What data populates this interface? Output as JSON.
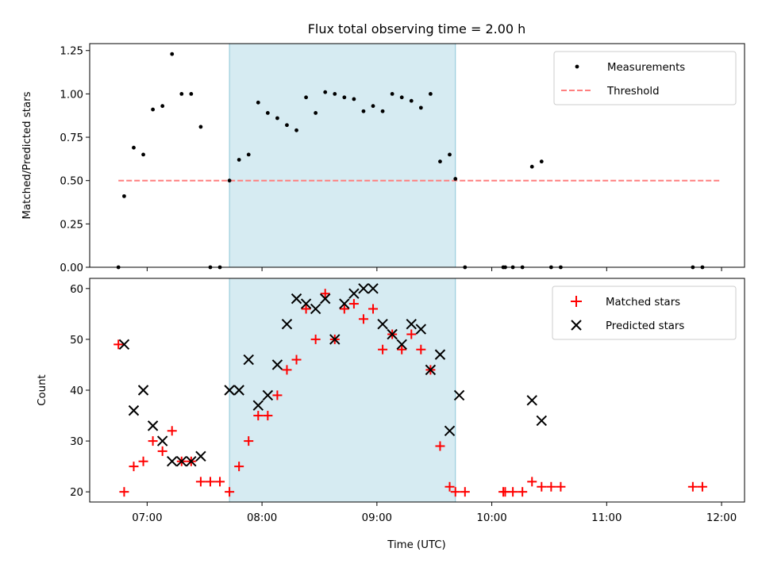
{
  "colors": {
    "measurement": "#000000",
    "threshold": "#ff7f7f",
    "matched": "#ff0000",
    "predicted": "#000000",
    "highlight": "#add8e6"
  },
  "chart_data": [
    {
      "type": "scatter",
      "title": "Flux total observing time = 2.00 h",
      "xlabel": "",
      "ylabel": "Matched/Predicted stars",
      "ylim": [
        0,
        1.29
      ],
      "xlim": [
        "06:30",
        "12:12"
      ],
      "y_ticks": [
        "0.00",
        "0.25",
        "0.50",
        "0.75",
        "1.00",
        "1.25"
      ],
      "y_tick_values": [
        0,
        0.25,
        0.5,
        0.75,
        1.0,
        1.25
      ],
      "highlight_span": [
        "07:43",
        "09:41"
      ],
      "grid": false,
      "legend_position": "top-right",
      "legend": [
        {
          "marker": "dot",
          "label": "Measurements"
        },
        {
          "marker": "dashed-line",
          "label": "Threshold"
        }
      ],
      "threshold": {
        "value": 0.5,
        "x_range": [
          "06:45",
          "12:00"
        ]
      },
      "series": [
        {
          "name": "Measurements",
          "x": [
            "06:45",
            "06:48",
            "06:53",
            "06:58",
            "07:03",
            "07:08",
            "07:13",
            "07:18",
            "07:23",
            "07:28",
            "07:33",
            "07:38",
            "07:43",
            "07:48",
            "07:53",
            "07:58",
            "08:03",
            "08:08",
            "08:13",
            "08:18",
            "08:23",
            "08:28",
            "08:33",
            "08:38",
            "08:43",
            "08:48",
            "08:53",
            "08:58",
            "09:03",
            "09:08",
            "09:13",
            "09:18",
            "09:23",
            "09:28",
            "09:33",
            "09:38",
            "09:41",
            "09:46",
            "10:06",
            "10:07",
            "10:11",
            "10:16",
            "10:21",
            "10:26",
            "10:31",
            "10:36",
            "11:45",
            "11:50"
          ],
          "values": [
            0.0,
            0.41,
            0.69,
            0.65,
            0.91,
            0.93,
            1.23,
            1.0,
            1.0,
            0.81,
            0.0,
            0.0,
            0.5,
            0.62,
            0.65,
            0.95,
            0.89,
            0.86,
            0.82,
            0.79,
            0.98,
            0.89,
            1.01,
            1.0,
            0.98,
            0.97,
            0.9,
            0.93,
            0.9,
            1.0,
            0.98,
            0.96,
            0.92,
            1.0,
            0.61,
            0.65,
            0.51,
            0.0,
            0.0,
            0.0,
            0.0,
            0.0,
            0.58,
            0.61,
            0.0,
            0.0,
            0.0,
            0.0
          ]
        }
      ]
    },
    {
      "type": "scatter",
      "title": "",
      "xlabel": "Time (UTC)",
      "ylabel": "Count",
      "ylim": [
        18,
        62
      ],
      "xlim": [
        "06:30",
        "12:12"
      ],
      "x_ticks": [
        "07:00",
        "08:00",
        "09:00",
        "10:00",
        "11:00",
        "12:00"
      ],
      "y_ticks": [
        "20",
        "30",
        "40",
        "50",
        "60"
      ],
      "y_tick_values": [
        20,
        30,
        40,
        50,
        60
      ],
      "highlight_span": [
        "07:43",
        "09:41"
      ],
      "grid": false,
      "legend_position": "top-right",
      "legend": [
        {
          "marker": "plus",
          "label": "Matched stars"
        },
        {
          "marker": "cross",
          "label": "Predicted stars"
        }
      ],
      "series": [
        {
          "name": "Matched stars",
          "marker": "plus",
          "x": [
            "06:45",
            "06:48",
            "06:53",
            "06:58",
            "07:03",
            "07:08",
            "07:13",
            "07:18",
            "07:23",
            "07:28",
            "07:33",
            "07:38",
            "07:43",
            "07:48",
            "07:53",
            "07:58",
            "08:03",
            "08:08",
            "08:13",
            "08:18",
            "08:23",
            "08:28",
            "08:33",
            "08:38",
            "08:43",
            "08:48",
            "08:53",
            "08:58",
            "09:03",
            "09:08",
            "09:13",
            "09:18",
            "09:23",
            "09:28",
            "09:33",
            "09:38",
            "09:41",
            "09:46",
            "10:06",
            "10:07",
            "10:11",
            "10:16",
            "10:21",
            "10:26",
            "10:31",
            "10:36",
            "11:45",
            "11:50"
          ],
          "values": [
            49,
            20,
            25,
            26,
            30,
            28,
            32,
            26,
            26,
            22,
            22,
            22,
            20,
            25,
            30,
            35,
            35,
            39,
            44,
            46,
            56,
            50,
            59,
            50,
            56,
            57,
            54,
            56,
            48,
            51,
            48,
            51,
            48,
            44,
            29,
            21,
            20,
            20,
            20,
            20,
            20,
            20,
            22,
            21,
            21,
            21,
            21,
            21
          ]
        },
        {
          "name": "Predicted stars",
          "marker": "cross",
          "x": [
            "06:48",
            "06:53",
            "06:58",
            "07:03",
            "07:08",
            "07:13",
            "07:18",
            "07:23",
            "07:28",
            "07:43",
            "07:48",
            "07:53",
            "07:58",
            "08:03",
            "08:08",
            "08:13",
            "08:18",
            "08:23",
            "08:28",
            "08:33",
            "08:38",
            "08:43",
            "08:48",
            "08:53",
            "08:58",
            "09:03",
            "09:08",
            "09:13",
            "09:18",
            "09:23",
            "09:28",
            "09:33",
            "09:38",
            "09:43",
            "10:21",
            "10:26"
          ],
          "values": [
            49,
            36,
            40,
            33,
            30,
            26,
            26,
            26,
            27,
            40,
            40,
            46,
            37,
            39,
            45,
            53,
            58,
            57,
            56,
            58,
            50,
            57,
            59,
            60,
            60,
            53,
            51,
            49,
            53,
            52,
            44,
            47,
            32,
            39,
            38,
            34
          ]
        }
      ]
    }
  ]
}
